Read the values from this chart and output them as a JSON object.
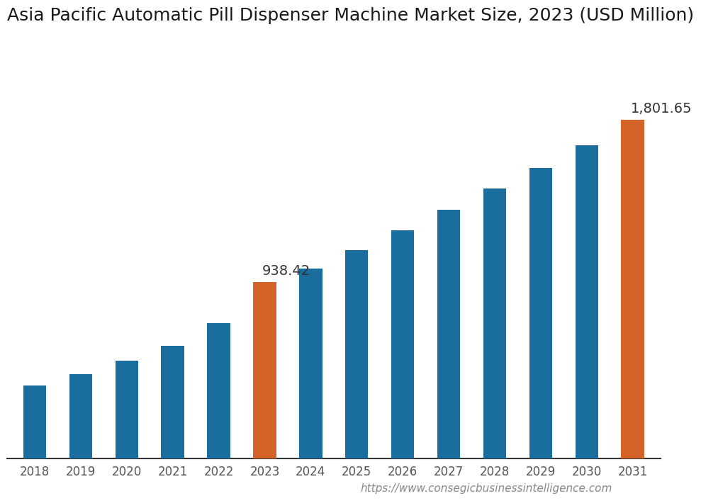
{
  "title": "Asia Pacific Automatic Pill Dispenser Machine Market Size, 2023 (USD Million)",
  "categories": [
    "2018",
    "2019",
    "2020",
    "2021",
    "2022",
    "2023",
    "2024",
    "2025",
    "2026",
    "2027",
    "2028",
    "2029",
    "2030",
    "2031"
  ],
  "values": [
    390,
    450,
    520,
    600,
    720,
    938.42,
    1010,
    1110,
    1215,
    1325,
    1435,
    1545,
    1665,
    1801.65
  ],
  "bar_colors": [
    "#1a6e9e",
    "#1a6e9e",
    "#1a6e9e",
    "#1a6e9e",
    "#1a6e9e",
    "#d4632a",
    "#1a6e9e",
    "#1a6e9e",
    "#1a6e9e",
    "#1a6e9e",
    "#1a6e9e",
    "#1a6e9e",
    "#1a6e9e",
    "#d4632a"
  ],
  "label_2023": "938.42",
  "label_2031": "1,801.65",
  "label_2023_idx": 5,
  "label_2031_idx": 13,
  "background_color": "#ffffff",
  "title_fontsize": 18,
  "tick_fontsize": 12,
  "annotation_fontsize": 14,
  "watermark": "https://www.consegicbusinessintelligence.com",
  "watermark_fontsize": 11,
  "ylim": [
    0,
    2200
  ]
}
